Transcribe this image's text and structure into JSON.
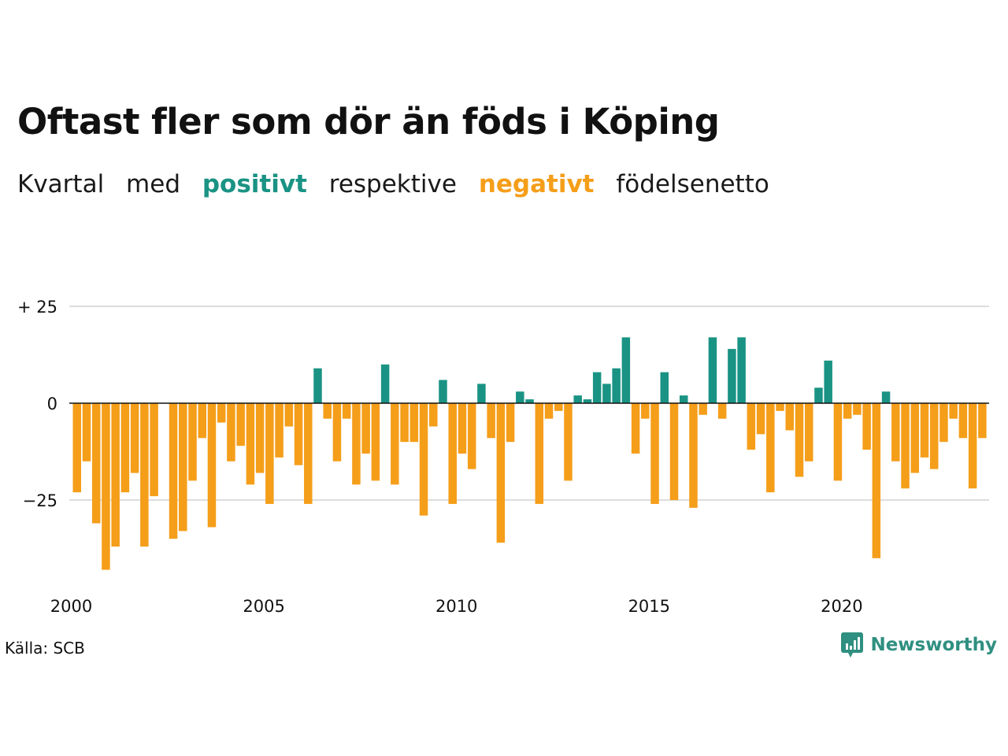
{
  "header": {
    "title": "Oftast fler som dör än föds i Köping",
    "subtitle": {
      "w1": "Kvartal",
      "w2": "med",
      "positive": "positivt",
      "w3": "respektive",
      "negative": "negativt",
      "w4": "födelsenetto"
    }
  },
  "footer": {
    "source": "Källa: SCB",
    "brand": "Newsworthy"
  },
  "colors": {
    "positive": "#1a9384",
    "negative": "#f59e1a",
    "grid": "#dddddd",
    "zero_line": "#111111",
    "brand": "#2f8f80"
  },
  "icons": {
    "brand_logo": "chart-logo-icon"
  },
  "chart_data": {
    "type": "bar",
    "xlabel": "",
    "ylabel": "",
    "ylim": [
      -45,
      25
    ],
    "y_ticks": [
      {
        "value": 25,
        "label": "+ 25"
      },
      {
        "value": 0,
        "label": "0"
      },
      {
        "value": -25,
        "label": "−25"
      }
    ],
    "x_ticks": [
      "2000",
      "2005",
      "2010",
      "2015",
      "2020"
    ],
    "categories": [
      "2000 K1",
      "2000 K2",
      "2000 K3",
      "2000 K4",
      "2001 K1",
      "2001 K2",
      "2001 K3",
      "2001 K4",
      "2002 K1",
      "2002 K2",
      "2002 K3",
      "2002 K4",
      "2003 K1",
      "2003 K2",
      "2003 K3",
      "2003 K4",
      "2004 K1",
      "2004 K2",
      "2004 K3",
      "2004 K4",
      "2005 K1",
      "2005 K2",
      "2005 K3",
      "2005 K4",
      "2006 K1",
      "2006 K2",
      "2006 K3",
      "2006 K4",
      "2007 K1",
      "2007 K2",
      "2007 K3",
      "2007 K4",
      "2008 K1",
      "2008 K2",
      "2008 K3",
      "2008 K4",
      "2009 K1",
      "2009 K2",
      "2009 K3",
      "2009 K4",
      "2010 K1",
      "2010 K2",
      "2010 K3",
      "2010 K4",
      "2011 K1",
      "2011 K2",
      "2011 K3",
      "2011 K4",
      "2012 K1",
      "2012 K2",
      "2012 K3",
      "2012 K4",
      "2013 K1",
      "2013 K2",
      "2013 K3",
      "2013 K4",
      "2014 K1",
      "2014 K2",
      "2014 K3",
      "2014 K4",
      "2015 K1",
      "2015 K2",
      "2015 K3",
      "2015 K4",
      "2016 K1",
      "2016 K2",
      "2016 K3",
      "2016 K4",
      "2017 K1",
      "2017 K2",
      "2017 K3",
      "2017 K4",
      "2018 K1",
      "2018 K2",
      "2018 K3",
      "2018 K4",
      "2019 K1",
      "2019 K2",
      "2019 K3",
      "2019 K4",
      "2020 K1",
      "2020 K2",
      "2020 K3",
      "2020 K4",
      "2021 K1",
      "2021 K2",
      "2021 K3",
      "2021 K4",
      "2022 K1",
      "2022 K2",
      "2022 K3",
      "2022 K4",
      "2023 K1",
      "2023 K2",
      "2023 K3",
      "2023 K4"
    ],
    "values": [
      -23,
      -15,
      -31,
      -43,
      -37,
      -23,
      -18,
      -37,
      -24,
      0,
      -35,
      -33,
      -20,
      -9,
      -32,
      -5,
      -15,
      -11,
      -21,
      -18,
      -26,
      -14,
      -6,
      -16,
      -26,
      9,
      -4,
      -15,
      -4,
      -21,
      -13,
      -20,
      10,
      -21,
      -10,
      -10,
      -29,
      -6,
      6,
      -26,
      -13,
      -17,
      5,
      -9,
      -36,
      -10,
      3,
      1,
      -26,
      -4,
      -2,
      -20,
      2,
      1,
      8,
      5,
      9,
      17,
      -13,
      -4,
      -26,
      8,
      -25,
      2,
      -27,
      -3,
      17,
      -4,
      14,
      17,
      -12,
      -8,
      -23,
      -2,
      -7,
      -19,
      -15,
      4,
      11,
      -20,
      -4,
      -3,
      -12,
      -40,
      3,
      -15,
      -22,
      -18,
      -14,
      -17,
      -10,
      -4,
      -9,
      -22,
      -9,
      0
    ]
  }
}
